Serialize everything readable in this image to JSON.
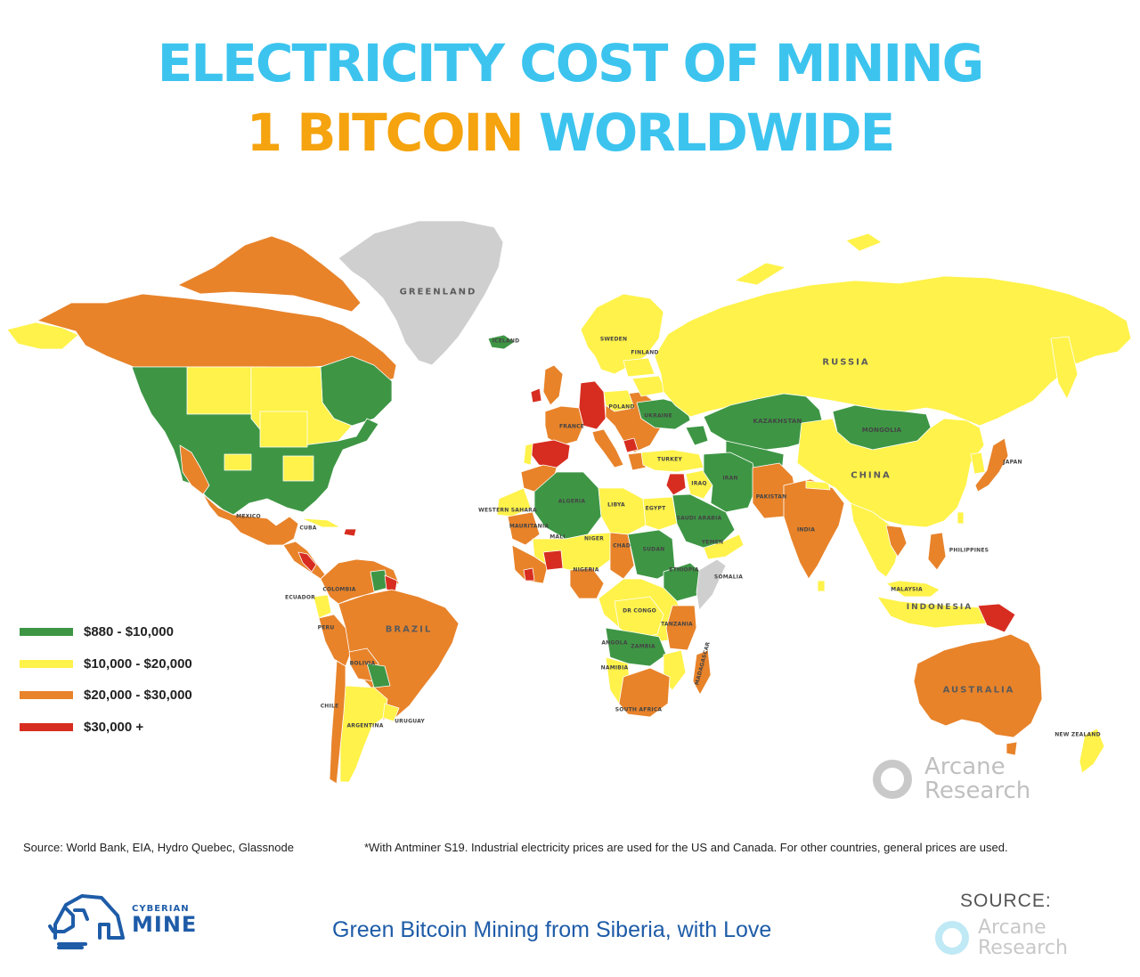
{
  "title": {
    "line1": "ELECTRICITY COST OF MINING",
    "line2_highlight": "1 BITCOIN",
    "line2_rest": "WORLDWIDE"
  },
  "colors": {
    "title_blue": "#3cc4ef",
    "title_orange": "#f5a30e",
    "green": "#3e9645",
    "yellow": "#fff24a",
    "orange": "#e8832a",
    "red": "#d72d20",
    "no_data": "#cfcfcf"
  },
  "legend": [
    {
      "label": "$880 - $10,000",
      "color": "#3e9645"
    },
    {
      "label": "$10,000 - $20,000",
      "color": "#fff24a"
    },
    {
      "label": "$20,000 - $30,000",
      "color": "#e8832a"
    },
    {
      "label": "$30,000 +",
      "color": "#d72d20"
    }
  ],
  "map_labels": {
    "greenland": "GREENLAND",
    "russia": "RUSSIA",
    "china": "CHINA",
    "kazakhstan": "KAZAKHSTAN",
    "mongolia": "MONGOLIA",
    "brazil": "BRAZIL",
    "australia": "AUSTRALIA",
    "indonesia": "INDONESIA",
    "india": "INDIA",
    "iran": "IRAN",
    "turkey": "TURKEY",
    "algeria": "ALGERIA",
    "libya": "LIBYA",
    "egypt": "EGYPT",
    "mali": "MALI",
    "niger": "NIGER",
    "chad": "CHAD",
    "sudan": "SUDAN",
    "nigeria": "NIGERIA",
    "ethiopia": "ETHIOPIA",
    "somalia": "SOMALIA",
    "dr_congo": "DR CONGO",
    "south_africa": "SOUTH AFRICA",
    "argentina": "ARGENTINA",
    "chile": "CHILE",
    "mexico": "MEXICO",
    "japan": "JAPAN",
    "philippines": "PHILIPPINES",
    "new_zealand": "NEW ZEALAND",
    "madagascar": "MADAGASCAR",
    "bolivia": "BOLIVIA",
    "peru": "PERU",
    "colombia": "COLOMBIA",
    "pakistan": "PAKISTAN",
    "saudi_arabia": "SAUDI ARABIA",
    "france": "FRANCE",
    "ukraine": "UKRAINE",
    "poland": "POLAND",
    "iceland": "ICELAND",
    "sweden": "SWEDEN",
    "finland": "FINLAND",
    "yemen": "YEMEN",
    "western_sahara": "WESTERN SAHARA",
    "mauritania": "MAURITANIA",
    "zambia": "ZAMBIA",
    "angola": "ANGOLA",
    "tanzania": "TANZANIA",
    "namibia": "NAMIBIA",
    "malaysia": "MALAYSIA",
    "uruguay": "URUGUAY",
    "iraq": "IRAQ",
    "cuba": "CUBA",
    "ecuador": "ECUADOR"
  },
  "watermark": {
    "line1": "Arcane",
    "line2": "Research"
  },
  "source_note": "Source: World Bank, EIA, Hydro Quebec, Glassnode",
  "footnote": "*With Antminer S19. Industrial electricity prices are used for the US and Canada. For other countries, general prices are used.",
  "footer": {
    "brand_top": "CYBERIAN",
    "brand_bottom": "MINE",
    "tagline": "Green Bitcoin Mining from Siberia, with Love",
    "source_label": "SOURCE:",
    "source_line1": "Arcane",
    "source_line2": "Research"
  }
}
